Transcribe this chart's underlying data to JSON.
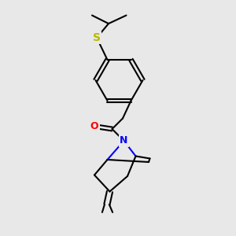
{
  "bg_color": "#e8e8e8",
  "line_color": "#000000",
  "S_color": "#b8b800",
  "N_color": "#0000ff",
  "O_color": "#ff0000",
  "line_width": 1.5,
  "figsize": [
    3.0,
    3.0
  ],
  "dpi": 100,
  "xlim": [
    0,
    10
  ],
  "ylim": [
    0,
    10
  ]
}
